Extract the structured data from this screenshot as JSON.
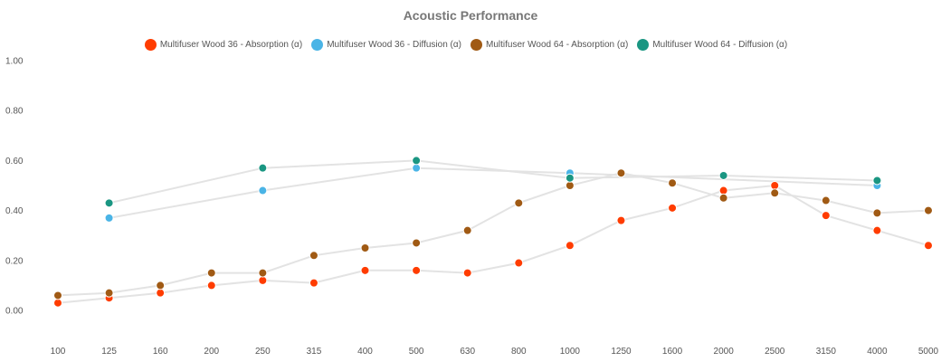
{
  "chart_data": {
    "type": "line",
    "title": "Acoustic Performance",
    "categories": [
      "100",
      "125",
      "160",
      "200",
      "250",
      "315",
      "400",
      "500",
      "630",
      "800",
      "1000",
      "1250",
      "1600",
      "2000",
      "2500",
      "3150",
      "4000",
      "5000"
    ],
    "ylim": [
      0,
      1
    ],
    "yticks": [
      "0.00",
      "0.20",
      "0.40",
      "0.60",
      "0.80",
      "1.00"
    ],
    "grid": false,
    "legend_position": "top",
    "line_color": "#e3e3e3",
    "series": [
      {
        "name": "Multifuser Wood 36 - Absorption (α)",
        "color": "#ff3c00",
        "values": [
          0.03,
          0.05,
          0.07,
          0.1,
          0.12,
          0.11,
          0.16,
          0.16,
          0.15,
          0.19,
          0.26,
          0.36,
          0.41,
          0.48,
          0.5,
          0.38,
          0.32,
          0.26
        ]
      },
      {
        "name": "Multifuser Wood 36 - Diffusion (α)",
        "color": "#4ab4e6",
        "values": [
          null,
          0.37,
          null,
          null,
          0.48,
          null,
          null,
          0.57,
          null,
          null,
          0.55,
          null,
          null,
          null,
          null,
          null,
          0.5,
          null
        ]
      },
      {
        "name": "Multifuser Wood 64 - Absorption (α)",
        "color": "#a05a14",
        "values": [
          0.06,
          0.07,
          0.1,
          0.15,
          0.15,
          0.22,
          0.25,
          0.27,
          0.32,
          0.43,
          0.5,
          0.55,
          0.51,
          0.45,
          0.47,
          0.44,
          0.39,
          0.4
        ]
      },
      {
        "name": "Multifuser Wood 64 - Diffusion (α)",
        "color": "#1a9682",
        "values": [
          null,
          0.43,
          null,
          null,
          0.57,
          null,
          null,
          0.6,
          null,
          null,
          0.53,
          null,
          null,
          0.54,
          null,
          null,
          0.52,
          null
        ]
      }
    ]
  }
}
